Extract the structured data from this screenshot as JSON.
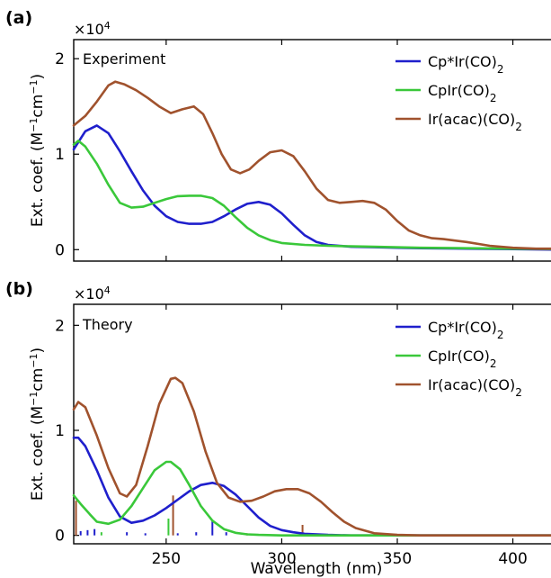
{
  "chart_data": [
    {
      "type": "line",
      "panel_label": "(a)",
      "annotation": "Experiment",
      "y_multiplier": "×10",
      "y_multiplier_exp": "4",
      "ylabel": "Ext. coef. (M⁻¹cm⁻¹)",
      "xlabel": "",
      "xlim": [
        210,
        420
      ],
      "ylim": [
        -0.12,
        2.2
      ],
      "x_ticks": [
        250,
        300,
        350,
        400
      ],
      "y_ticks": [
        0,
        1,
        2
      ],
      "y_tick_labels": [
        "0",
        "1",
        "2"
      ],
      "legend_position": "top-right",
      "series": [
        {
          "name_html": "Cp*Ir(CO)<tspan baseline-shift=\"sub\" font-size=\"12\">2</tspan>",
          "color": "#1f1fcc",
          "x": [
            210,
            215,
            220,
            225,
            230,
            235,
            240,
            245,
            250,
            255,
            260,
            265,
            270,
            275,
            280,
            285,
            290,
            295,
            300,
            305,
            310,
            315,
            320,
            325,
            330,
            340,
            350,
            360,
            380,
            400,
            420
          ],
          "y": [
            1.05,
            1.24,
            1.3,
            1.22,
            1.03,
            0.82,
            0.62,
            0.46,
            0.35,
            0.29,
            0.27,
            0.27,
            0.29,
            0.35,
            0.42,
            0.48,
            0.5,
            0.47,
            0.38,
            0.26,
            0.15,
            0.08,
            0.05,
            0.04,
            0.03,
            0.025,
            0.02,
            0.015,
            0.01,
            0.005,
            0.0
          ]
        },
        {
          "name_html": "CpIr(CO)<tspan baseline-shift=\"sub\" font-size=\"12\">2</tspan>",
          "color": "#3ac83a",
          "x": [
            210,
            212,
            215,
            220,
            225,
            230,
            235,
            240,
            245,
            250,
            255,
            260,
            265,
            270,
            275,
            280,
            285,
            290,
            295,
            300,
            310,
            320,
            330,
            340,
            360,
            380,
            400,
            420
          ],
          "y": [
            1.1,
            1.14,
            1.08,
            0.9,
            0.68,
            0.49,
            0.44,
            0.45,
            0.49,
            0.53,
            0.56,
            0.565,
            0.565,
            0.54,
            0.46,
            0.34,
            0.23,
            0.15,
            0.1,
            0.07,
            0.05,
            0.04,
            0.035,
            0.03,
            0.02,
            0.015,
            0.01,
            0.005
          ]
        },
        {
          "name_html": "Ir(acac)(CO)<tspan baseline-shift=\"sub\" font-size=\"12\">2</tspan>",
          "color": "#a0522d",
          "x": [
            210,
            215,
            220,
            225,
            228,
            232,
            237,
            242,
            247,
            252,
            257,
            262,
            266,
            270,
            274,
            278,
            282,
            286,
            290,
            295,
            300,
            305,
            310,
            315,
            320,
            325,
            330,
            335,
            340,
            345,
            350,
            355,
            360,
            365,
            370,
            380,
            390,
            400,
            410,
            420
          ],
          "y": [
            1.3,
            1.4,
            1.55,
            1.72,
            1.76,
            1.73,
            1.67,
            1.59,
            1.5,
            1.43,
            1.47,
            1.5,
            1.42,
            1.22,
            1.0,
            0.84,
            0.8,
            0.84,
            0.93,
            1.02,
            1.04,
            0.98,
            0.82,
            0.64,
            0.52,
            0.49,
            0.5,
            0.51,
            0.49,
            0.42,
            0.3,
            0.2,
            0.15,
            0.12,
            0.11,
            0.08,
            0.04,
            0.02,
            0.01,
            0.01
          ]
        }
      ]
    },
    {
      "type": "line",
      "panel_label": "(b)",
      "annotation": "Theory",
      "y_multiplier": "×10",
      "y_multiplier_exp": "4",
      "ylabel": "Ext. coef. (M⁻¹cm⁻¹)",
      "xlabel": "Wavelength (nm)",
      "xlim": [
        210,
        420
      ],
      "ylim": [
        -0.08,
        2.2
      ],
      "x_ticks": [
        250,
        300,
        350,
        400
      ],
      "y_ticks": [
        0,
        1,
        2
      ],
      "y_tick_labels": [
        "0",
        "1",
        "2"
      ],
      "legend_position": "top-right",
      "series": [
        {
          "name_html": "Cp*Ir(CO)<tspan baseline-shift=\"sub\" font-size=\"12\">2</tspan>",
          "color": "#1f1fcc",
          "x": [
            210,
            212,
            215,
            220,
            225,
            230,
            235,
            240,
            245,
            250,
            255,
            260,
            265,
            270,
            275,
            280,
            285,
            290,
            295,
            300,
            305,
            310,
            320,
            330,
            350,
            420
          ],
          "y": [
            0.93,
            0.93,
            0.85,
            0.62,
            0.36,
            0.18,
            0.12,
            0.14,
            0.19,
            0.26,
            0.34,
            0.42,
            0.48,
            0.5,
            0.47,
            0.39,
            0.28,
            0.17,
            0.09,
            0.05,
            0.03,
            0.015,
            0.005,
            0.0,
            0.0,
            0.0
          ]
        },
        {
          "name_html": "CpIr(CO)<tspan baseline-shift=\"sub\" font-size=\"12\">2</tspan>",
          "color": "#3ac83a",
          "x": [
            210,
            213,
            217,
            220,
            225,
            230,
            235,
            240,
            245,
            250,
            252,
            256,
            260,
            265,
            270,
            275,
            280,
            285,
            290,
            300,
            310,
            320,
            350,
            420
          ],
          "y": [
            0.38,
            0.3,
            0.2,
            0.13,
            0.11,
            0.15,
            0.28,
            0.45,
            0.62,
            0.7,
            0.7,
            0.63,
            0.48,
            0.28,
            0.14,
            0.06,
            0.025,
            0.01,
            0.005,
            0.0,
            0.0,
            0.0,
            0.0,
            0.0
          ]
        },
        {
          "name_html": "Ir(acac)(CO)<tspan baseline-shift=\"sub\" font-size=\"12\">2</tspan>",
          "color": "#a0522d",
          "x": [
            210,
            212,
            215,
            220,
            225,
            230,
            233,
            237,
            242,
            247,
            252,
            254,
            257,
            262,
            267,
            272,
            277,
            282,
            287,
            292,
            297,
            302,
            307,
            312,
            317,
            322,
            327,
            332,
            340,
            350,
            360,
            380,
            420
          ],
          "y": [
            1.2,
            1.27,
            1.22,
            0.95,
            0.64,
            0.4,
            0.37,
            0.48,
            0.85,
            1.25,
            1.49,
            1.5,
            1.45,
            1.18,
            0.8,
            0.5,
            0.36,
            0.32,
            0.33,
            0.37,
            0.42,
            0.44,
            0.44,
            0.4,
            0.32,
            0.22,
            0.13,
            0.07,
            0.02,
            0.005,
            0.0,
            0.0,
            0.0
          ]
        }
      ],
      "sticks": [
        {
          "x": 211,
          "y": 0.33,
          "color": "#a0522d"
        },
        {
          "x": 213,
          "y": 0.04,
          "color": "#1f1fcc"
        },
        {
          "x": 216,
          "y": 0.05,
          "color": "#1f1fcc"
        },
        {
          "x": 219,
          "y": 0.06,
          "color": "#1f1fcc"
        },
        {
          "x": 222,
          "y": 0.03,
          "color": "#3ac83a"
        },
        {
          "x": 233,
          "y": 0.03,
          "color": "#1f1fcc"
        },
        {
          "x": 241,
          "y": 0.02,
          "color": "#1f1fcc"
        },
        {
          "x": 251,
          "y": 0.16,
          "color": "#3ac83a"
        },
        {
          "x": 253,
          "y": 0.38,
          "color": "#a0522d"
        },
        {
          "x": 255,
          "y": 0.02,
          "color": "#1f1fcc"
        },
        {
          "x": 263,
          "y": 0.03,
          "color": "#1f1fcc"
        },
        {
          "x": 270,
          "y": 0.14,
          "color": "#1f1fcc"
        },
        {
          "x": 276,
          "y": 0.03,
          "color": "#1f1fcc"
        },
        {
          "x": 285,
          "y": 0.02,
          "color": "#a0522d"
        },
        {
          "x": 309,
          "y": 0.1,
          "color": "#a0522d"
        }
      ]
    }
  ]
}
